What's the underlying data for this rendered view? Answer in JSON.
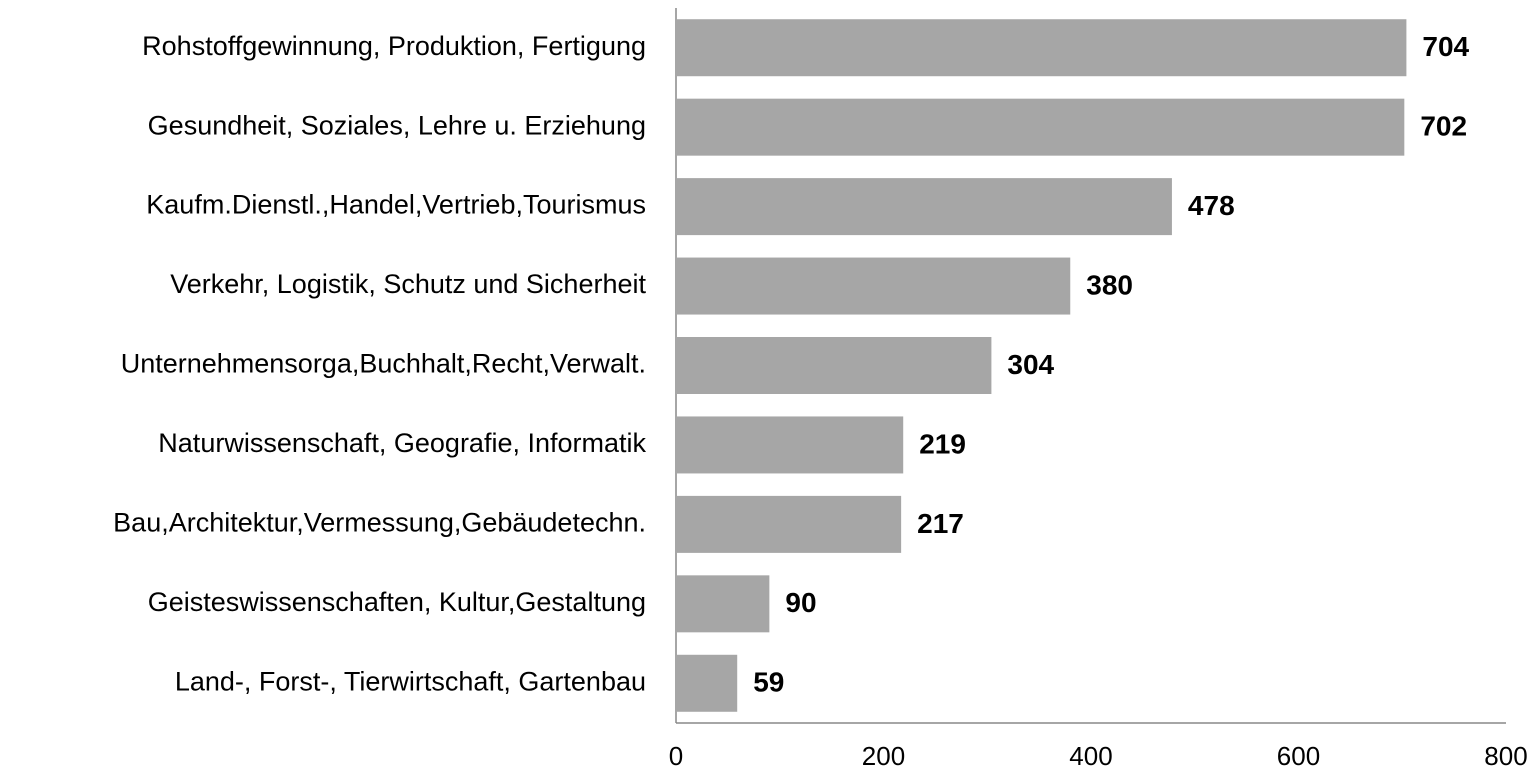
{
  "chart_data": {
    "type": "barh",
    "categories": [
      "Rohstoffgewinnung, Produktion, Fertigung",
      "Gesundheit, Soziales, Lehre u. Erziehung",
      "Kaufm.Dienstl.,Handel,Vertrieb,Tourismus",
      "Verkehr, Logistik, Schutz und Sicherheit",
      "Unternehmensorga,Buchhalt,Recht,Verwalt.",
      "Naturwissenschaft, Geografie, Informatik",
      "Bau,Architektur,Vermessung,Gebäudetechn.",
      "Geisteswissenschaften, Kultur,Gestaltung",
      "Land-, Forst-, Tierwirtschaft, Gartenbau"
    ],
    "values": [
      704,
      702,
      478,
      380,
      304,
      219,
      217,
      90,
      59
    ],
    "color": "#a6a6a6",
    "xlim": [
      0,
      800
    ],
    "xticks": [
      0,
      200,
      400,
      600,
      800
    ],
    "grid": false
  }
}
